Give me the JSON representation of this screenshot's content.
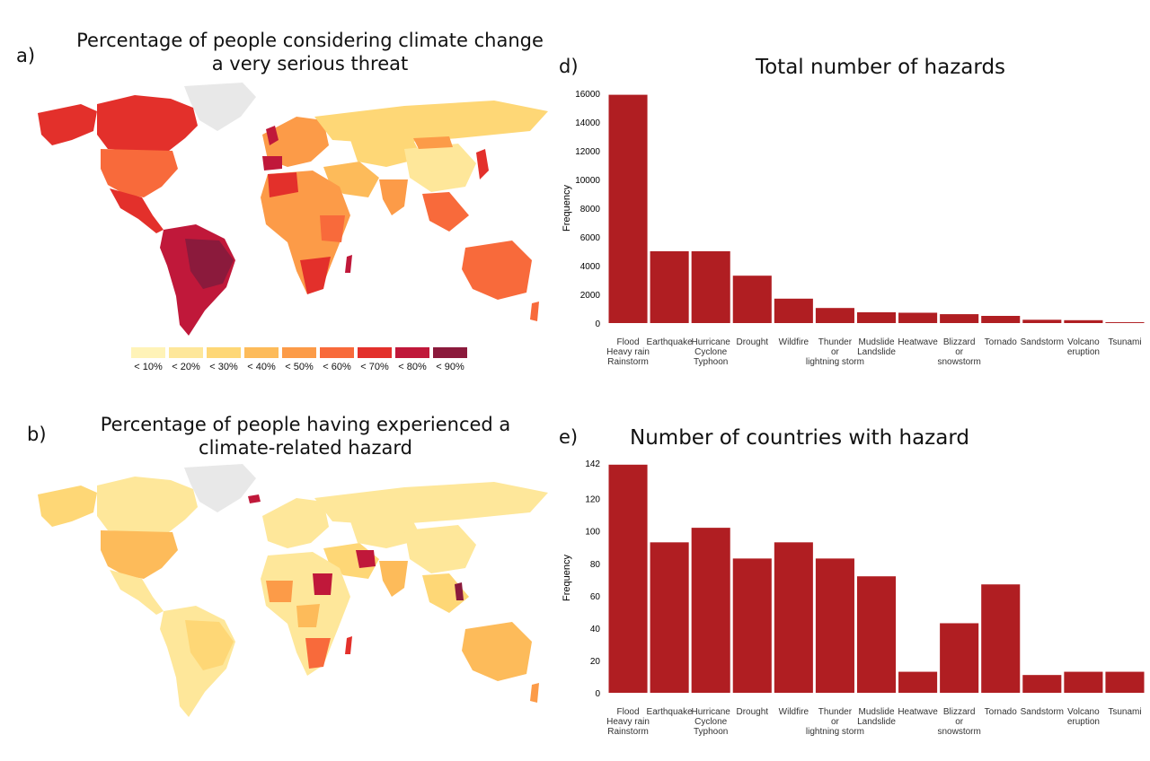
{
  "panels": {
    "a": {
      "letter": "a)",
      "title_line1": "Percentage of people considering climate change",
      "title_line2": "a very serious threat"
    },
    "b": {
      "letter": "b)",
      "title_line1": "Percentage of people having experienced a",
      "title_line2": "climate-related hazard"
    },
    "d": {
      "letter": "d)"
    },
    "e": {
      "letter": "e)"
    }
  },
  "legend": {
    "items": [
      {
        "label": "< 10%",
        "color": "#fff3b8"
      },
      {
        "label": "< 20%",
        "color": "#fee79a"
      },
      {
        "label": "< 30%",
        "color": "#fed776"
      },
      {
        "label": "< 40%",
        "color": "#fdbb5a"
      },
      {
        "label": "< 50%",
        "color": "#fc9b48"
      },
      {
        "label": "< 60%",
        "color": "#f86a3b"
      },
      {
        "label": "< 70%",
        "color": "#e3302b"
      },
      {
        "label": "< 80%",
        "color": "#c0183a"
      },
      {
        "label": "< 90%",
        "color": "#8b1a3c"
      }
    ]
  },
  "colors": {
    "bar": "#b01e22",
    "no_data": "#e8e8e8"
  },
  "chart_data": [
    {
      "type": "bar",
      "title": "Total number of hazards",
      "ylabel": "Frequency",
      "xlabel": "",
      "ylim": [
        0,
        16000
      ],
      "yticks": [
        0,
        2000,
        4000,
        6000,
        8000,
        10000,
        12000,
        14000,
        16000
      ],
      "grid": false,
      "categories": [
        [
          "Flood",
          "Heavy rain",
          "Rainstorm"
        ],
        [
          "Earthquake"
        ],
        [
          "Hurricane",
          "Cyclone",
          "Typhoon"
        ],
        [
          "Drought"
        ],
        [
          "Wildfire"
        ],
        [
          "Thunder",
          "or",
          "lightning storm"
        ],
        [
          "Mudslide",
          "Landslide"
        ],
        [
          "Heatwave"
        ],
        [
          "Blizzard",
          "or",
          "snowstorm"
        ],
        [
          "Tornado"
        ],
        [
          "Sandstorm"
        ],
        [
          "Volcano",
          "eruption"
        ],
        [
          "Tsunami"
        ]
      ],
      "values": [
        15900,
        5000,
        5000,
        3300,
        1700,
        1050,
        750,
        720,
        620,
        500,
        230,
        200,
        60
      ]
    },
    {
      "type": "bar",
      "title": "Number of countries with hazard",
      "ylabel": "Frequency",
      "xlabel": "",
      "ylim": [
        0,
        142
      ],
      "yticks": [
        0,
        20,
        40,
        60,
        80,
        100,
        120,
        142
      ],
      "grid": false,
      "categories": [
        [
          "Flood",
          "Heavy rain",
          "Rainstorm"
        ],
        [
          "Earthquake"
        ],
        [
          "Hurricane",
          "Cyclone",
          "Typhoon"
        ],
        [
          "Drought"
        ],
        [
          "Wildfire"
        ],
        [
          "Thunder",
          "or",
          "lightning storm"
        ],
        [
          "Mudslide",
          "Landslide"
        ],
        [
          "Heatwave"
        ],
        [
          "Blizzard",
          "or",
          "snowstorm"
        ],
        [
          "Tornado"
        ],
        [
          "Sandstorm"
        ],
        [
          "Volcano",
          "eruption"
        ],
        [
          "Tsunami"
        ]
      ],
      "values": [
        141,
        93,
        102,
        83,
        93,
        83,
        72,
        13,
        43,
        67,
        11,
        13,
        13
      ]
    }
  ]
}
